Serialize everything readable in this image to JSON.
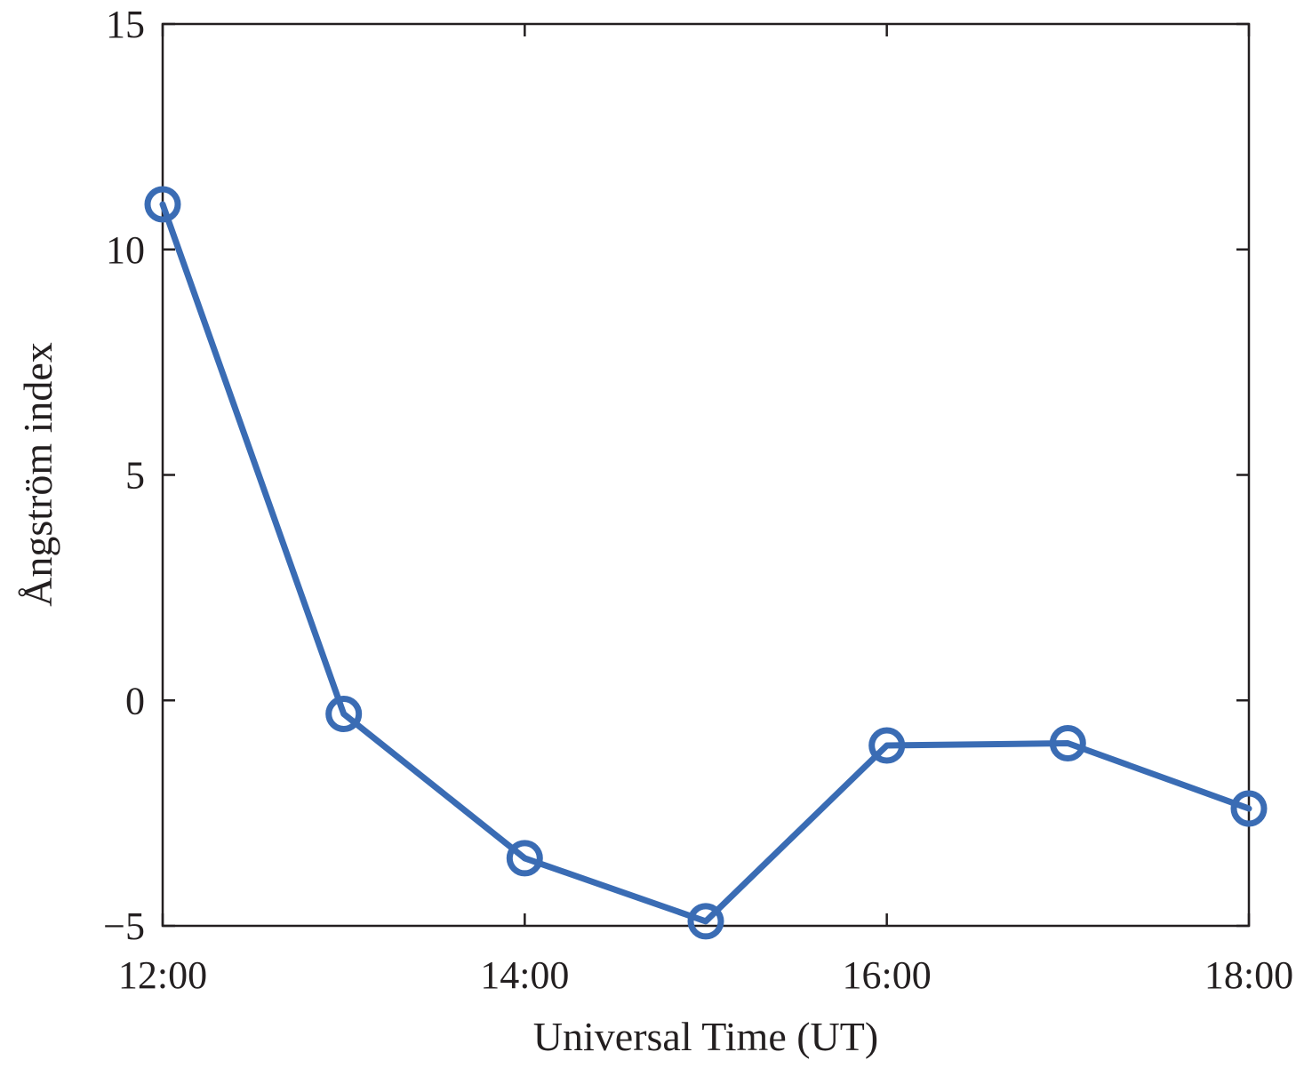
{
  "chart_data": {
    "type": "line",
    "xlabel": "Universal Time (UT)",
    "ylabel": "Ångström index",
    "x": [
      "12:00",
      "13:00",
      "14:00",
      "15:00",
      "16:00",
      "17:00",
      "18:00"
    ],
    "xlim": [
      "12:00",
      "18:00"
    ],
    "ylim": [
      -5,
      15
    ],
    "xticks": [
      "12:00",
      "14:00",
      "16:00",
      "18:00"
    ],
    "yticks": [
      -5,
      0,
      5,
      10,
      15
    ],
    "ytick_labels": [
      "−5",
      "0",
      "5",
      "10",
      "15"
    ],
    "grid": false,
    "series": [
      {
        "color": "#3a6cb4",
        "marker": "circle",
        "values": [
          11,
          -0.3,
          -3.5,
          -4.9,
          -1.0,
          -0.95,
          -2.4
        ]
      }
    ]
  }
}
